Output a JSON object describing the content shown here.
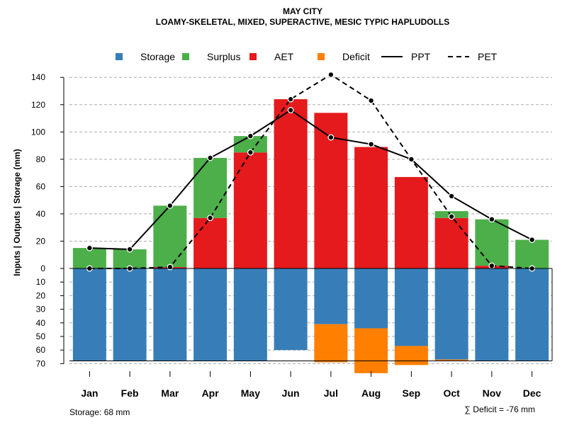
{
  "chart_data": {
    "type": "bar",
    "title": "MAY CITY",
    "subtitle": "LOAMY-SKELETAL, MIXED, SUPERACTIVE, MESIC TYPIC HAPLUDOLLS",
    "ylabel": "Inputs | Outputs | Storage    (mm)",
    "ylim_upper": [
      0,
      140
    ],
    "ylim_lower": [
      0,
      70
    ],
    "yticks_upper": [
      0,
      20,
      40,
      60,
      80,
      100,
      120,
      140
    ],
    "yticks_lower": [
      10,
      20,
      30,
      40,
      50,
      60,
      70
    ],
    "grid": true,
    "legend_position": "top",
    "categories": [
      "Jan",
      "Feb",
      "Mar",
      "Apr",
      "May",
      "Jun",
      "Jul",
      "Aug",
      "Sep",
      "Oct",
      "Nov",
      "Dec"
    ],
    "series": [
      {
        "name": "Storage",
        "kind": "bar-below",
        "color": "#377eb8",
        "values": [
          68,
          68,
          68,
          68,
          68,
          60,
          41,
          44,
          57,
          67,
          68,
          68
        ]
      },
      {
        "name": "Surplus",
        "kind": "bar-stacked",
        "color": "#4daf4a",
        "values": [
          15,
          14,
          45,
          44,
          12,
          0,
          0,
          0,
          0,
          5,
          34,
          21
        ]
      },
      {
        "name": "AET",
        "kind": "bar-stacked",
        "color": "#e41a1c",
        "values": [
          0,
          0,
          1,
          37,
          85,
          124,
          114,
          89,
          67,
          37,
          2,
          0
        ]
      },
      {
        "name": "Deficit",
        "kind": "bar-below",
        "color": "#ff7f00",
        "values": [
          0,
          0,
          0,
          0,
          0,
          0,
          28,
          33,
          14,
          1,
          0,
          0
        ]
      },
      {
        "name": "PPT",
        "kind": "line-solid",
        "color": "#000000",
        "values": [
          15,
          14,
          46,
          81,
          97,
          116,
          96,
          91,
          80,
          53,
          36,
          21
        ]
      },
      {
        "name": "PET",
        "kind": "line-dashed",
        "color": "#000000",
        "values": [
          0,
          0,
          1,
          37,
          85,
          124,
          142,
          123,
          80,
          38,
          2,
          0
        ]
      }
    ],
    "storage_capacity": 68,
    "footer_left": "Storage: 68 mm",
    "footer_right": "∑ Deficit = -76 mm"
  }
}
